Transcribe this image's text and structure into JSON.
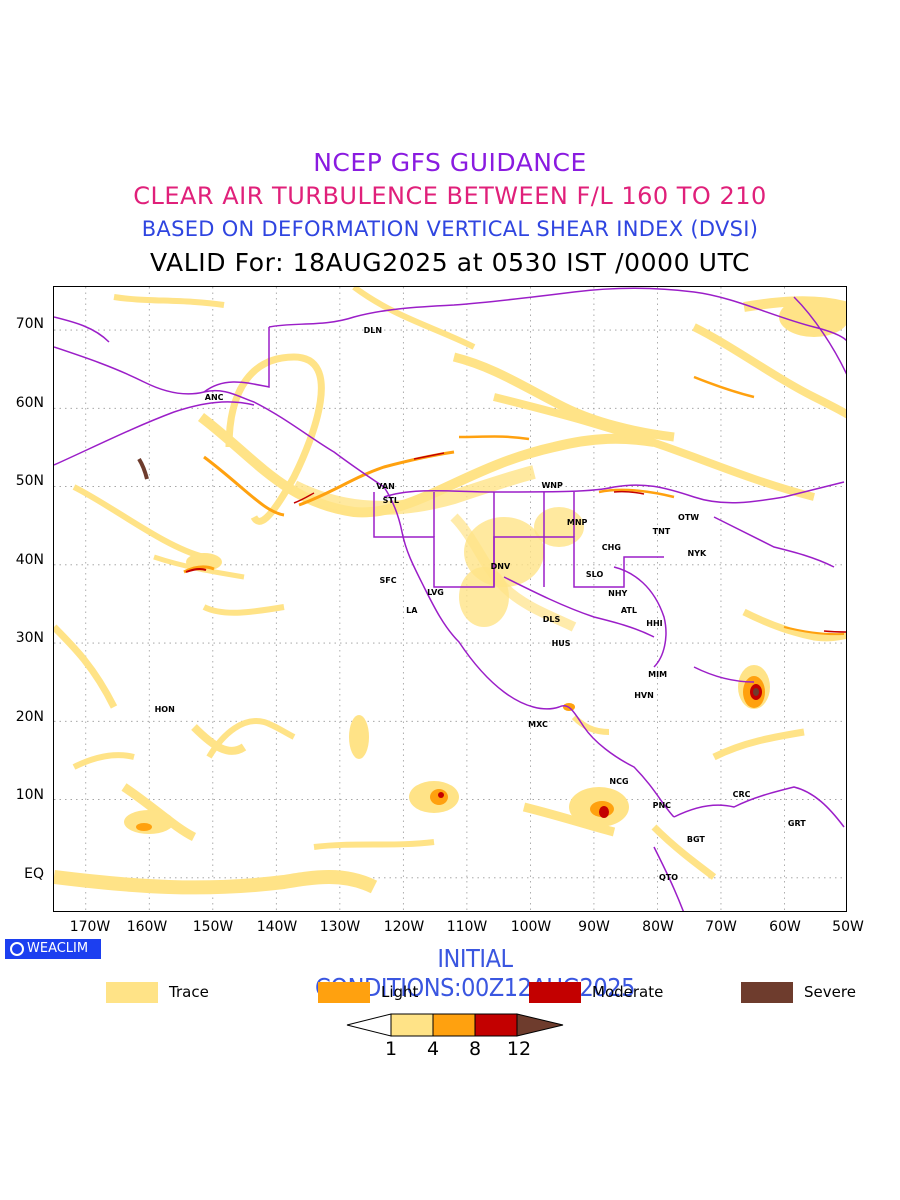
{
  "header": {
    "line1": "NCEP GFS GUIDANCE",
    "line2": "CLEAR AIR TURBULENCE BETWEEN F/L 160 TO 210",
    "line3": "BASED ON DEFORMATION VERTICAL SHEAR INDEX (DVSI)",
    "line4": "VALID For: 18AUG2025 at 0530 IST /0000 UTC"
  },
  "colors": {
    "line1": "#8a1be0",
    "line2": "#e0207a",
    "line3": "#2f45e0",
    "line4": "#000000",
    "trace": "#ffe387",
    "light": "#ffa10f",
    "moderate": "#c30000",
    "severe": "#6e3c2d",
    "coast": "#9b1ec8"
  },
  "map": {
    "lat_labels": [
      "70N",
      "60N",
      "50N",
      "40N",
      "30N",
      "20N",
      "10N",
      "EQ"
    ],
    "lon_labels": [
      "170W",
      "160W",
      "150W",
      "140W",
      "130W",
      "120W",
      "110W",
      "100W",
      "90W",
      "80W",
      "70W",
      "60W",
      "50W"
    ],
    "lon_range": [
      -175,
      -50
    ],
    "lat_range": [
      -4.5,
      75.5
    ],
    "stations": [
      {
        "name": "ANC",
        "lon": -150,
        "lat": 61.2
      },
      {
        "name": "DLN",
        "lon": -125,
        "lat": 69.8
      },
      {
        "name": "VAN",
        "lon": -123,
        "lat": 49.8
      },
      {
        "name": "STL",
        "lon": -122,
        "lat": 48.0
      },
      {
        "name": "WNP",
        "lon": -97,
        "lat": 50.0
      },
      {
        "name": "MNP",
        "lon": -93,
        "lat": 45.2
      },
      {
        "name": "OTW",
        "lon": -75.5,
        "lat": 45.8
      },
      {
        "name": "TNT",
        "lon": -79.5,
        "lat": 44.0
      },
      {
        "name": "CHG",
        "lon": -87.5,
        "lat": 42.0
      },
      {
        "name": "NYK",
        "lon": -74,
        "lat": 41.2
      },
      {
        "name": "DNV",
        "lon": -105,
        "lat": 39.6
      },
      {
        "name": "SFC",
        "lon": -122.5,
        "lat": 37.8
      },
      {
        "name": "SLO",
        "lon": -90,
        "lat": 38.6
      },
      {
        "name": "LVG",
        "lon": -115,
        "lat": 36.3
      },
      {
        "name": "NHY",
        "lon": -86.5,
        "lat": 36.2
      },
      {
        "name": "LA",
        "lon": -118.3,
        "lat": 34.0
      },
      {
        "name": "ATL",
        "lon": -84.5,
        "lat": 34.0
      },
      {
        "name": "DLS",
        "lon": -96.8,
        "lat": 32.8
      },
      {
        "name": "HHI",
        "lon": -80.5,
        "lat": 32.3
      },
      {
        "name": "HUS",
        "lon": -95.4,
        "lat": 29.7
      },
      {
        "name": "MIM",
        "lon": -80.2,
        "lat": 25.8
      },
      {
        "name": "HVN",
        "lon": -82.4,
        "lat": 23.1
      },
      {
        "name": "HON",
        "lon": -157.9,
        "lat": 21.3
      },
      {
        "name": "MXC",
        "lon": -99.1,
        "lat": 19.4
      },
      {
        "name": "NCG",
        "lon": -86.3,
        "lat": 12.1
      },
      {
        "name": "CRC",
        "lon": -66.9,
        "lat": 10.5
      },
      {
        "name": "PNC",
        "lon": -79.5,
        "lat": 9.0
      },
      {
        "name": "GRT",
        "lon": -58.2,
        "lat": 6.8
      },
      {
        "name": "BGT",
        "lon": -74.1,
        "lat": 4.7
      },
      {
        "name": "QTO",
        "lon": -78.5,
        "lat": -0.2
      }
    ]
  },
  "footer": {
    "brand": "WEACLIM",
    "initial_conditions": "INITIAL CONDITIONS:00Z12AUG2025"
  },
  "legend": {
    "items": [
      {
        "label": "Trace",
        "color": "#ffe387"
      },
      {
        "label": "Light",
        "color": "#ffa10f"
      },
      {
        "label": "Moderate",
        "color": "#c30000"
      },
      {
        "label": "Severe",
        "color": "#6e3c2d"
      }
    ],
    "colorbar_labels": [
      "1",
      "4",
      "8",
      "12"
    ]
  }
}
